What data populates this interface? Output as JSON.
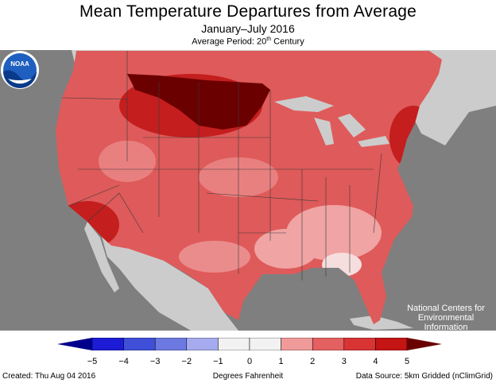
{
  "title": "Mean Temperature Departures from Average",
  "subtitle": "January–July 2016",
  "period": {
    "prefix": "Average Period: 20",
    "sup": "th",
    "suffix": " Century"
  },
  "agency": {
    "line1": "National Centers for",
    "line2": "Environmental",
    "line3": "Information"
  },
  "logo_text": "NOAA",
  "legend": {
    "unit": "Degrees Fahrenheit",
    "ticks": [
      "−5",
      "−4",
      "−3",
      "−2",
      "−1",
      "0",
      "1",
      "2",
      "3",
      "4",
      "5"
    ],
    "bins": [
      {
        "from": -5,
        "to": -4,
        "color": "#1c1cd6"
      },
      {
        "from": -4,
        "to": -3,
        "color": "#3f4fd8"
      },
      {
        "from": -3,
        "to": -2,
        "color": "#6c79e0"
      },
      {
        "from": -2,
        "to": -1,
        "color": "#a5abee"
      },
      {
        "from": -1,
        "to": 0,
        "color": "#f2f2f2"
      },
      {
        "from": 0,
        "to": 1,
        "color": "#f2f2f2"
      },
      {
        "from": 1,
        "to": 2,
        "color": "#f09a9a"
      },
      {
        "from": 2,
        "to": 3,
        "color": "#e56060"
      },
      {
        "from": 3,
        "to": 4,
        "color": "#d83434"
      },
      {
        "from": 4,
        "to": 5,
        "color": "#c41414"
      }
    ],
    "under_color": "#00008b",
    "over_color": "#6b0000"
  },
  "footer": {
    "created": "Created: Thu Aug 04 2016",
    "source": "Data Source: 5km Gridded (nClimGrid)"
  },
  "colors": {
    "ocean": "#7f7f7f",
    "land_other": "#cccccc",
    "base_us": "#df5a5a",
    "far_north": "#6b0000"
  }
}
